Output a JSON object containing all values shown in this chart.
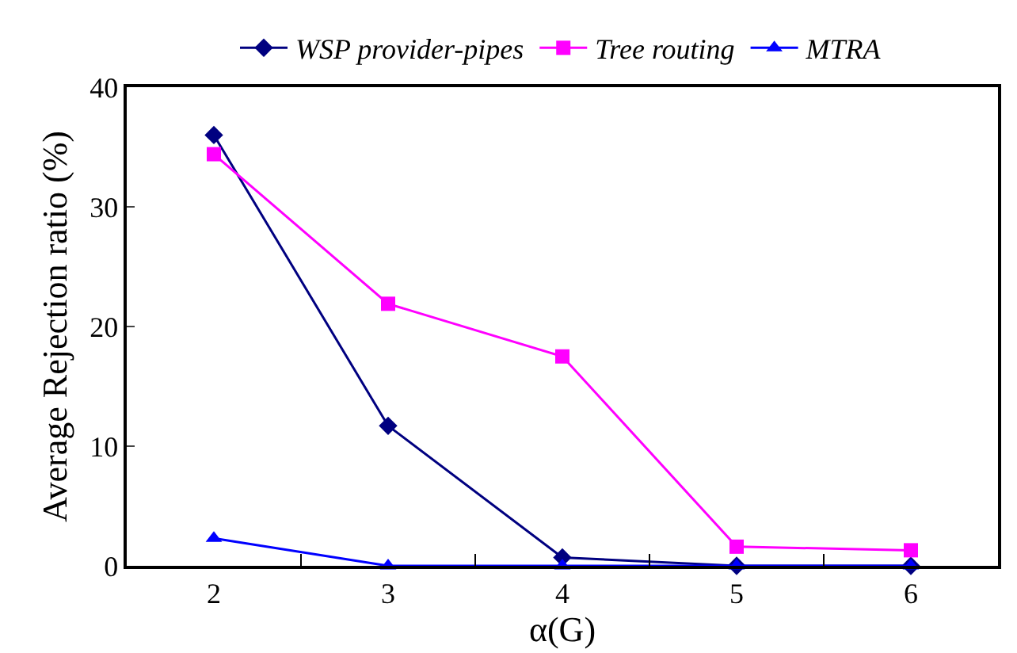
{
  "chart_data": {
    "type": "line",
    "xlabel": "α(G)",
    "ylabel": "Average Rejection ratio (%)",
    "categories": [
      "2",
      "3",
      "4",
      "5",
      "6"
    ],
    "ylim": [
      0,
      40
    ],
    "yticks": [
      0,
      10,
      20,
      30,
      40
    ],
    "legend": "top",
    "line_style": "solid",
    "series": [
      {
        "name": "WSP provider-pipes",
        "color": "#000080",
        "marker": "diamond",
        "values": [
          36.0,
          11.7,
          0.7,
          0,
          0
        ]
      },
      {
        "name": "Tree routing",
        "color": "#ff00ff",
        "marker": "square",
        "values": [
          34.4,
          21.9,
          17.5,
          1.6,
          1.3
        ]
      },
      {
        "name": "MTRA",
        "color": "#0000ff",
        "marker": "triangle",
        "values": [
          2.3,
          0,
          0,
          0,
          0
        ]
      }
    ]
  }
}
